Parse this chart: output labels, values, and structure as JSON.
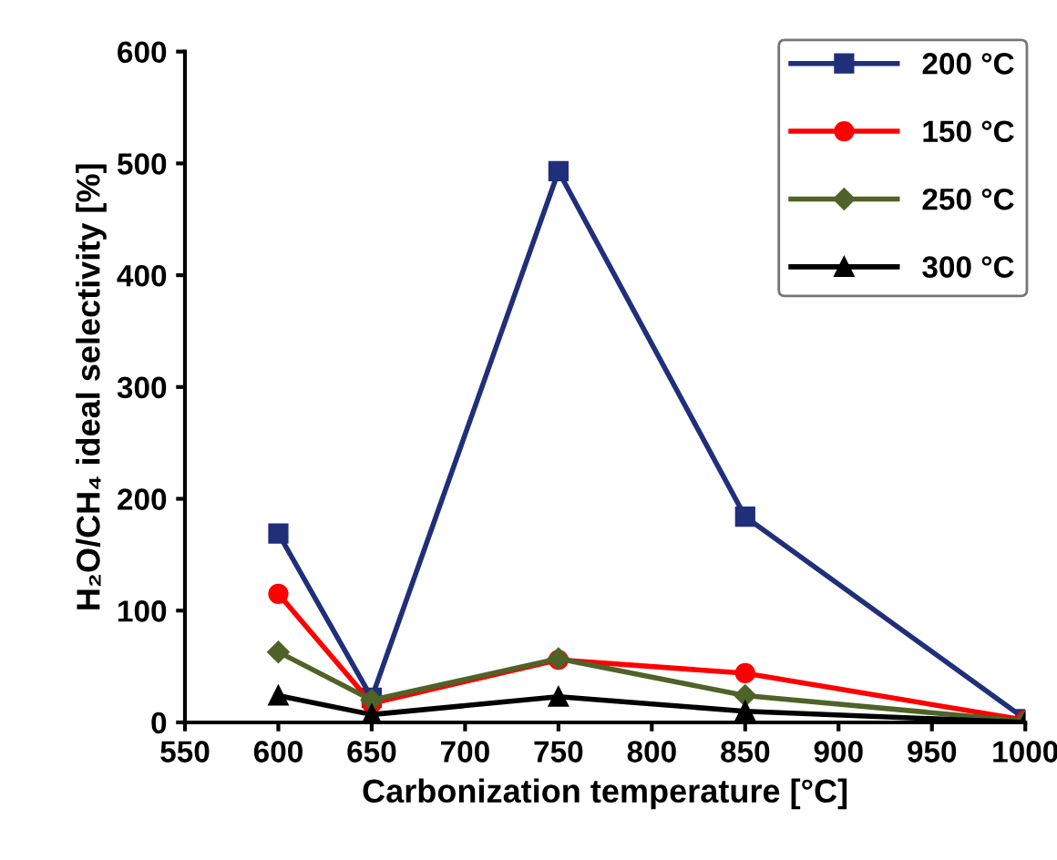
{
  "chart_data": {
    "type": "line",
    "xlabel": "Carbonization temperature [°C]",
    "ylabel": "H₂O/CH₄ ideal selectivity [%]",
    "x": [
      600,
      650,
      750,
      850,
      1000
    ],
    "series": [
      {
        "name": "200 °C",
        "color": "#1f2f7a",
        "marker": "square",
        "values": [
          169,
          22,
          493,
          184,
          3
        ]
      },
      {
        "name": "150 °C",
        "color": "#ff0000",
        "marker": "circle",
        "values": [
          115,
          17,
          56,
          44,
          2
        ]
      },
      {
        "name": "250 °C",
        "color": "#4f6228",
        "marker": "diamond",
        "values": [
          63,
          20,
          57,
          24,
          1
        ]
      },
      {
        "name": "300 °C",
        "color": "#000000",
        "marker": "triangle",
        "values": [
          24,
          7,
          23,
          10,
          0
        ]
      }
    ],
    "xlim": [
      550,
      1000
    ],
    "xticks": [
      550,
      600,
      650,
      700,
      750,
      800,
      850,
      900,
      950,
      1000
    ],
    "ylim": [
      0,
      600
    ],
    "yticks": [
      0,
      100,
      200,
      300,
      400,
      500,
      600
    ],
    "grid": false,
    "legend": "top right",
    "line_style": "solid"
  }
}
